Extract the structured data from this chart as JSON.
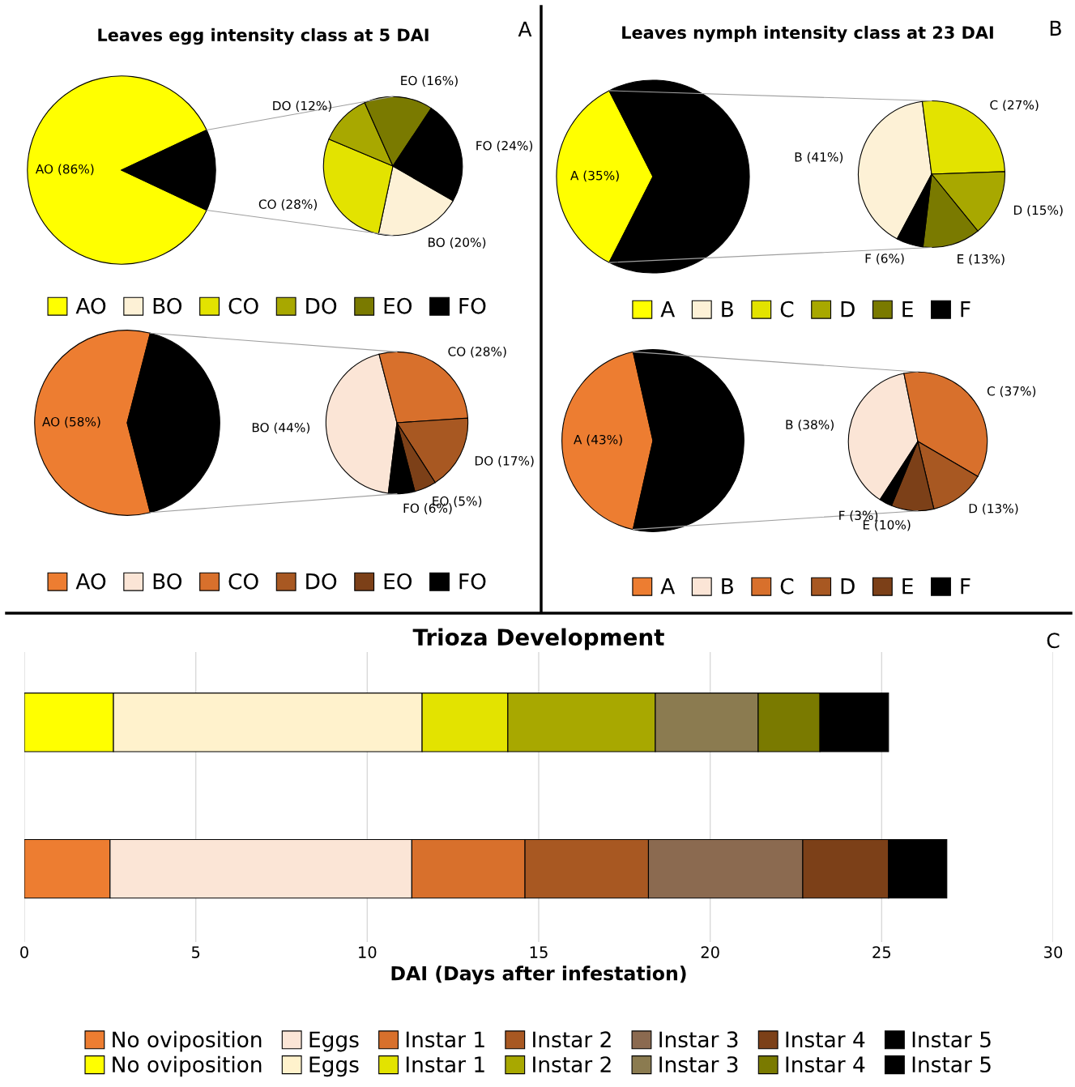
{
  "chart_data": [
    {
      "type": "pie",
      "title": "Leaves egg intensity class at 5 DAI",
      "categories": [
        "AO",
        null
      ],
      "values": [
        86,
        14
      ],
      "colors": [
        "#ffff00",
        "#000000"
      ],
      "value_labels": [
        "AO (86%)",
        null
      ],
      "annotations": [
        "A"
      ]
    },
    {
      "type": "pie",
      "categories": [
        "BO",
        "CO",
        "DO",
        "EO",
        "FO"
      ],
      "values": [
        20,
        28,
        12,
        16,
        24
      ],
      "colors": [
        "#fdf1d6",
        "#e3e300",
        "#a8a800",
        "#7a7a00",
        "#000000"
      ],
      "value_labels": [
        "BO (20%)",
        "CO (28%)",
        "DO (12%)",
        "EO (16%)",
        "FO (24%)"
      ],
      "legend": "bottom"
    },
    {
      "type": "pie",
      "categories": [
        "AO",
        null
      ],
      "values": [
        58,
        42
      ],
      "colors": [
        "#ed7d31",
        "#000000"
      ],
      "value_labels": [
        "AO (58%)",
        null
      ]
    },
    {
      "type": "pie",
      "categories": [
        "BO",
        "CO",
        "DO",
        "EO",
        "FO"
      ],
      "values": [
        44,
        28,
        17,
        5,
        6
      ],
      "colors": [
        "#fbe5d6",
        "#d8702c",
        "#a85822",
        "#7c4018",
        "#000000"
      ],
      "value_labels": [
        "BO (44%)",
        "CO (28%)",
        "DO (17%)",
        "EO (5%)",
        "FO (6%)"
      ],
      "legend": "bottom"
    },
    {
      "type": "pie",
      "title": "Leaves nymph intensity class at 23 DAI",
      "categories": [
        "A",
        null
      ],
      "values": [
        35,
        65
      ],
      "colors": [
        "#ffff00",
        "#000000"
      ],
      "value_labels": [
        "A (35%)",
        null
      ],
      "annotations": [
        "B"
      ]
    },
    {
      "type": "pie",
      "categories": [
        "B",
        "C",
        "D",
        "E",
        "F"
      ],
      "values": [
        41,
        27,
        15,
        13,
        6
      ],
      "colors": [
        "#fdf1d6",
        "#e3e300",
        "#a8a800",
        "#7a7a00",
        "#000000"
      ],
      "value_labels": [
        "B (41%)",
        "C (27%)",
        "D (15%)",
        "E (13%)",
        "F (6%)"
      ],
      "legend": "bottom"
    },
    {
      "type": "pie",
      "categories": [
        "A",
        null
      ],
      "values": [
        43,
        57
      ],
      "colors": [
        "#ed7d31",
        "#000000"
      ],
      "value_labels": [
        "A (43%)",
        null
      ]
    },
    {
      "type": "pie",
      "categories": [
        "B",
        "C",
        "D",
        "E",
        "F"
      ],
      "values": [
        38,
        37,
        13,
        10,
        3
      ],
      "colors": [
        "#fbe5d6",
        "#d8702c",
        "#a85822",
        "#7c4018",
        "#000000"
      ],
      "value_labels": [
        "B (38%)",
        "C (37%)",
        "D (13%)",
        "E (10%)",
        "F (3%)"
      ],
      "legend": "bottom"
    },
    {
      "type": "bar",
      "orientation": "horizontal",
      "stacked": true,
      "title": "Trioza Development",
      "xlabel": "DAI (Days after infestation)",
      "annotations": [
        "C"
      ],
      "categories": [
        null,
        null
      ],
      "xlim": [
        0,
        30
      ],
      "xticks": [
        0,
        5,
        10,
        15,
        20,
        25,
        30
      ],
      "grid": "x",
      "legend": "bottom",
      "series": [
        {
          "name": "No oviposition",
          "color": "#ed7d31",
          "values": [
            null,
            2.5
          ]
        },
        {
          "name": "Eggs",
          "color": "#fbe5d6",
          "values": [
            null,
            8.8
          ]
        },
        {
          "name": "Instar 1",
          "color": "#d8702c",
          "values": [
            null,
            3.3
          ]
        },
        {
          "name": "Instar 2",
          "color": "#a85822",
          "values": [
            null,
            3.6
          ]
        },
        {
          "name": "Instar 3",
          "color": "#8b6a50",
          "values": [
            null,
            4.5
          ]
        },
        {
          "name": "Instar 4",
          "color": "#7c4018",
          "values": [
            null,
            2.5
          ]
        },
        {
          "name": "Instar 5",
          "color": "#000000",
          "values": [
            null,
            1.7
          ]
        },
        {
          "name": "No oviposition",
          "color": "#ffff00",
          "values": [
            2.6,
            null
          ]
        },
        {
          "name": "Eggs",
          "color": "#fff2cc",
          "values": [
            9.0,
            null
          ]
        },
        {
          "name": "Instar 1",
          "color": "#e3e300",
          "values": [
            2.5,
            null
          ]
        },
        {
          "name": "Instar 2",
          "color": "#a8a800",
          "values": [
            4.3,
            null
          ]
        },
        {
          "name": "Instar 3",
          "color": "#8b7b50",
          "values": [
            3.0,
            null
          ]
        },
        {
          "name": "Instar 4",
          "color": "#7a7a00",
          "values": [
            1.8,
            null
          ]
        },
        {
          "name": "Instar 5",
          "color": "#000000",
          "values": [
            2.0,
            null
          ]
        }
      ]
    }
  ]
}
